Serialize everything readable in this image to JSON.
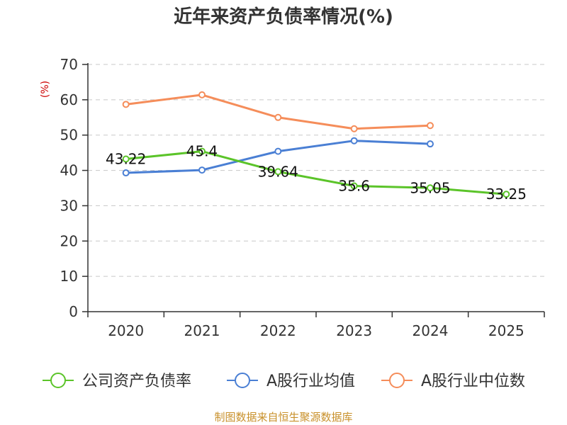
{
  "chart_data": {
    "type": "line",
    "title": "近年来资产负债率情况(%)",
    "ylabel": "(%)",
    "xlabel": "",
    "categories": [
      "2020",
      "2021",
      "2022",
      "2023",
      "2024",
      "2025"
    ],
    "ylim": [
      0,
      70
    ],
    "yticks": [
      0,
      10,
      20,
      30,
      40,
      50,
      60,
      70
    ],
    "grid": true,
    "legend_position": "bottom",
    "series": [
      {
        "name": "公司资产负债率",
        "color": "#5bc429",
        "values": [
          43.22,
          45.4,
          39.64,
          35.6,
          35.05,
          33.25
        ],
        "labels": [
          "43.22",
          "45.4",
          "39.64",
          "35.6",
          "35.05",
          "33.25"
        ]
      },
      {
        "name": "A股行业均值",
        "color": "#4a7fd4",
        "values": [
          39.3,
          40.1,
          45.4,
          48.4,
          47.5,
          null
        ]
      },
      {
        "name": "A股行业中位数",
        "color": "#f58d5a",
        "values": [
          58.7,
          61.4,
          55.0,
          51.8,
          52.7,
          null
        ]
      }
    ]
  },
  "source_text": "制图数据来自恒生聚源数据库"
}
